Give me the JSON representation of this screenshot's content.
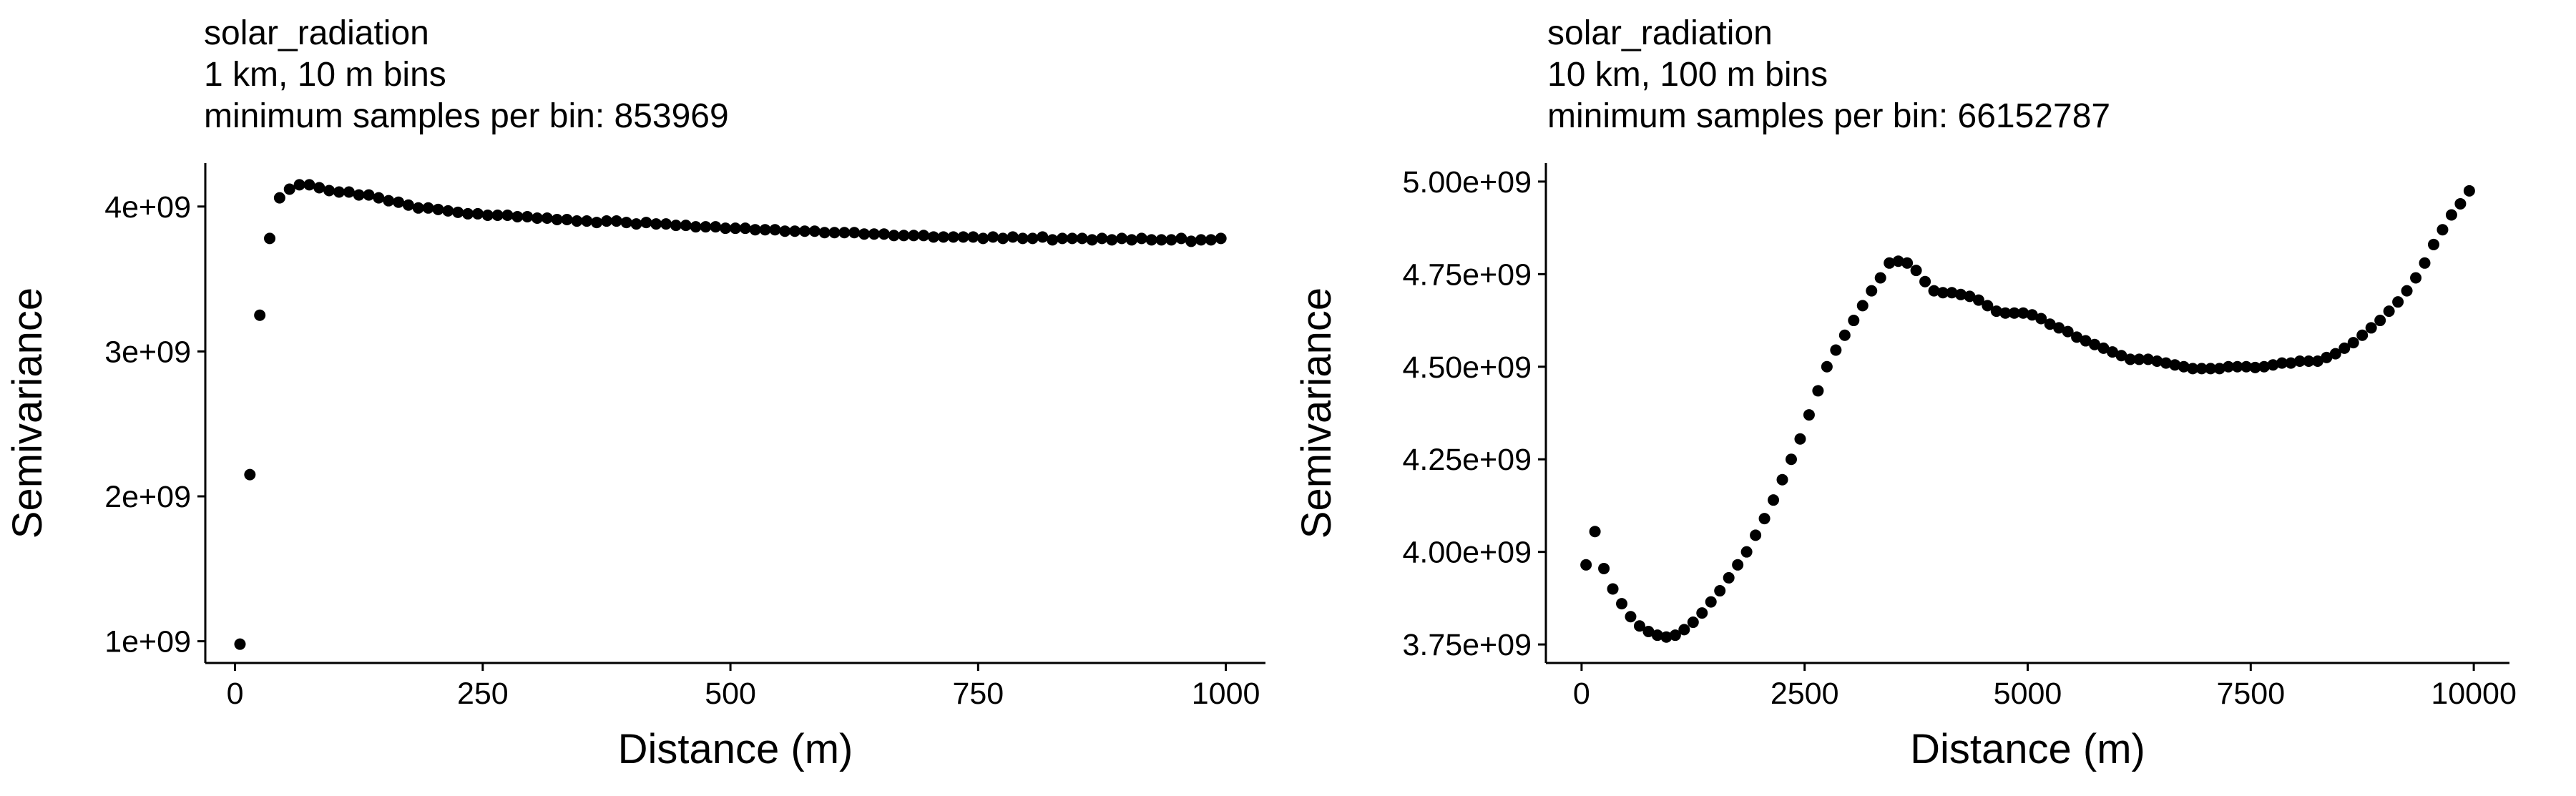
{
  "chart_data": [
    {
      "type": "scatter",
      "title": "solar_radiation",
      "subtitle": [
        "1 km, 10 m bins",
        "minimum samples per bin: 853969"
      ],
      "xlabel": "Distance (m)",
      "ylabel": "Semivariance",
      "xlim": [
        -30,
        1040
      ],
      "ylim": [
        850000000.0,
        4300000000.0
      ],
      "xticks": [
        0,
        250,
        500,
        750,
        1000
      ],
      "xtick_labels": [
        "0",
        "250",
        "500",
        "750",
        "1000"
      ],
      "yticks": [
        1000000000,
        2000000000,
        3000000000,
        4000000000
      ],
      "ytick_labels": [
        "1e+09",
        "2e+09",
        "3e+09",
        "4e+09"
      ],
      "grid": false,
      "legend": "none",
      "marker_color": "#000000",
      "x": [
        5,
        15,
        25,
        35,
        45,
        55,
        65,
        75,
        85,
        95,
        105,
        115,
        125,
        135,
        145,
        155,
        165,
        175,
        185,
        195,
        205,
        215,
        225,
        235,
        245,
        255,
        265,
        275,
        285,
        295,
        305,
        315,
        325,
        335,
        345,
        355,
        365,
        375,
        385,
        395,
        405,
        415,
        425,
        435,
        445,
        455,
        465,
        475,
        485,
        495,
        505,
        515,
        525,
        535,
        545,
        555,
        565,
        575,
        585,
        595,
        605,
        615,
        625,
        635,
        645,
        655,
        665,
        675,
        685,
        695,
        705,
        715,
        725,
        735,
        745,
        755,
        765,
        775,
        785,
        795,
        805,
        815,
        825,
        835,
        845,
        855,
        865,
        875,
        885,
        895,
        905,
        915,
        925,
        935,
        945,
        955,
        965,
        975,
        985,
        995
      ],
      "y": [
        980000000,
        2150000000,
        3250000000,
        3780000000,
        4060000000,
        4120000000,
        4150000000,
        4150000000,
        4130000000,
        4110000000,
        4100000000,
        4100000000,
        4080000000,
        4080000000,
        4060000000,
        4040000000,
        4030000000,
        4010000000,
        3990000000,
        3990000000,
        3980000000,
        3970000000,
        3960000000,
        3950000000,
        3950000000,
        3940000000,
        3940000000,
        3940000000,
        3930000000,
        3930000000,
        3920000000,
        3920000000,
        3910000000,
        3910000000,
        3900000000,
        3900000000,
        3890000000,
        3900000000,
        3900000000,
        3890000000,
        3880000000,
        3890000000,
        3880000000,
        3880000000,
        3870000000,
        3870000000,
        3860000000,
        3860000000,
        3860000000,
        3850000000,
        3850000000,
        3850000000,
        3840000000,
        3840000000,
        3840000000,
        3830000000,
        3830000000,
        3830000000,
        3830000000,
        3820000000,
        3820000000,
        3820000000,
        3820000000,
        3810000000,
        3810000000,
        3810000000,
        3800000000,
        3800000000,
        3800000000,
        3800000000,
        3790000000,
        3790000000,
        3790000000,
        3790000000,
        3790000000,
        3780000000,
        3790000000,
        3780000000,
        3790000000,
        3780000000,
        3780000000,
        3790000000,
        3770000000,
        3780000000,
        3780000000,
        3780000000,
        3770000000,
        3780000000,
        3770000000,
        3780000000,
        3770000000,
        3780000000,
        3770000000,
        3770000000,
        3770000000,
        3780000000,
        3760000000,
        3770000000,
        3770000000,
        3780000000
      ]
    },
    {
      "type": "scatter",
      "title": "solar_radiation",
      "subtitle": [
        "10 km, 100 m bins",
        "minimum samples per bin: 66152787"
      ],
      "xlabel": "Distance (m)",
      "ylabel": "Semivariance",
      "xlim": [
        -400,
        10400
      ],
      "ylim": [
        3700000000.0,
        5050000000.0
      ],
      "xticks": [
        0,
        2500,
        5000,
        7500,
        10000
      ],
      "xtick_labels": [
        "0",
        "2500",
        "5000",
        "7500",
        "10000"
      ],
      "yticks": [
        3750000000,
        4000000000,
        4250000000,
        4500000000,
        4750000000,
        5000000000
      ],
      "ytick_labels": [
        "3.75e+09",
        "4.00e+09",
        "4.25e+09",
        "4.50e+09",
        "4.75e+09",
        "5.00e+09"
      ],
      "grid": false,
      "legend": "none",
      "marker_color": "#000000",
      "x": [
        50,
        150,
        250,
        350,
        450,
        550,
        650,
        750,
        850,
        950,
        1050,
        1150,
        1250,
        1350,
        1450,
        1550,
        1650,
        1750,
        1850,
        1950,
        2050,
        2150,
        2250,
        2350,
        2450,
        2550,
        2650,
        2750,
        2850,
        2950,
        3050,
        3150,
        3250,
        3350,
        3450,
        3550,
        3650,
        3750,
        3850,
        3950,
        4050,
        4150,
        4250,
        4350,
        4450,
        4550,
        4650,
        4750,
        4850,
        4950,
        5050,
        5150,
        5250,
        5350,
        5450,
        5550,
        5650,
        5750,
        5850,
        5950,
        6050,
        6150,
        6250,
        6350,
        6450,
        6550,
        6650,
        6750,
        6850,
        6950,
        7050,
        7150,
        7250,
        7350,
        7450,
        7550,
        7650,
        7750,
        7850,
        7950,
        8050,
        8150,
        8250,
        8350,
        8450,
        8550,
        8650,
        8750,
        8850,
        8950,
        9050,
        9150,
        9250,
        9350,
        9450,
        9550,
        9650,
        9750,
        9850,
        9950
      ],
      "y": [
        3965000000,
        4055000000,
        3955000000,
        3900000000,
        3860000000,
        3825000000,
        3800000000,
        3785000000,
        3775000000,
        3770000000,
        3775000000,
        3790000000,
        3810000000,
        3835000000,
        3865000000,
        3895000000,
        3930000000,
        3965000000,
        4000000000,
        4045000000,
        4090000000,
        4140000000,
        4195000000,
        4250000000,
        4305000000,
        4370000000,
        4435000000,
        4500000000,
        4545000000,
        4585000000,
        4625000000,
        4665000000,
        4705000000,
        4740000000,
        4780000000,
        4785000000,
        4780000000,
        4760000000,
        4730000000,
        4705000000,
        4700000000,
        4700000000,
        4695000000,
        4690000000,
        4680000000,
        4665000000,
        4650000000,
        4645000000,
        4645000000,
        4645000000,
        4640000000,
        4630000000,
        4615000000,
        4605000000,
        4595000000,
        4580000000,
        4570000000,
        4560000000,
        4550000000,
        4540000000,
        4530000000,
        4520000000,
        4520000000,
        4520000000,
        4515000000,
        4510000000,
        4505000000,
        4500000000,
        4495000000,
        4495000000,
        4495000000,
        4495000000,
        4500000000,
        4500000000,
        4500000000,
        4498000000,
        4500000000,
        4505000000,
        4510000000,
        4510000000,
        4515000000,
        4515000000,
        4515000000,
        4525000000,
        4535000000,
        4550000000,
        4565000000,
        4585000000,
        4605000000,
        4625000000,
        4650000000,
        4675000000,
        4705000000,
        4740000000,
        4780000000,
        4830000000,
        4870000000,
        4910000000,
        4940000000,
        4975000000
      ]
    }
  ]
}
